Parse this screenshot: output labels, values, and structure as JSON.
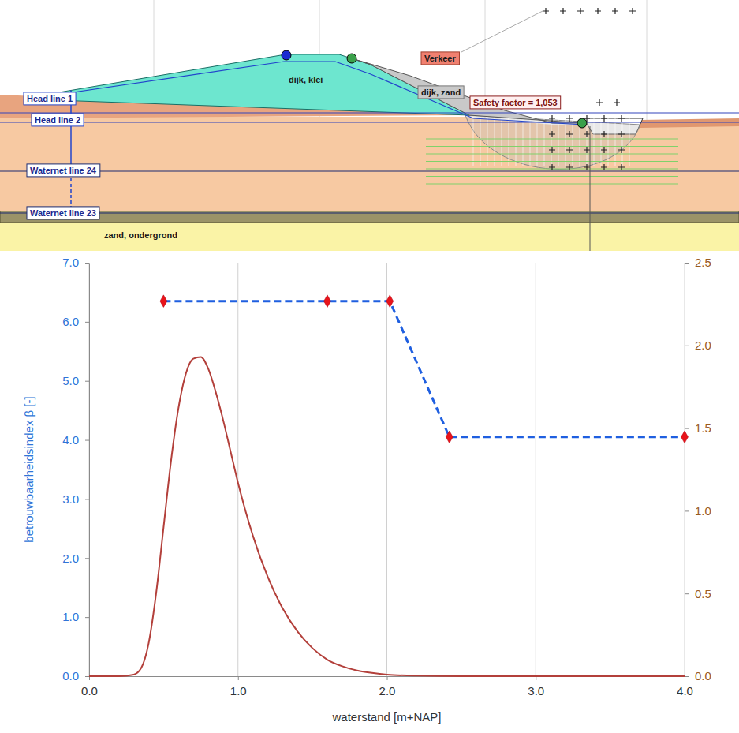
{
  "chart_data": {
    "type": "line",
    "xlabel": "waterstand [m+NAP]",
    "ylabel": "betrouwbaarheidsindex β [-]",
    "xlim": [
      0,
      4
    ],
    "xticks": [
      {
        "value": 0,
        "label": "0.0"
      },
      {
        "value": 1,
        "label": "1.0"
      },
      {
        "value": 2,
        "label": "2.0"
      },
      {
        "value": 3,
        "label": "3.0"
      },
      {
        "value": 4,
        "label": "4.0"
      }
    ],
    "ylim": [
      0,
      7
    ],
    "yticks": [
      {
        "value": 0,
        "label": "0.0"
      },
      {
        "value": 1,
        "label": "1.0"
      },
      {
        "value": 2,
        "label": "2.0"
      },
      {
        "value": 3,
        "label": "3.0"
      },
      {
        "value": 4,
        "label": "4.0"
      },
      {
        "value": 5,
        "label": "5.0"
      },
      {
        "value": 6,
        "label": "6.0"
      },
      {
        "value": 7,
        "label": "7.0"
      }
    ],
    "y2lim": [
      0,
      2.5
    ],
    "y2ticks": [
      {
        "value": 0,
        "label": "0.0"
      },
      {
        "value": 0.5,
        "label": "0.5"
      },
      {
        "value": 1,
        "label": "1.0"
      },
      {
        "value": 1.5,
        "label": "1.5"
      },
      {
        "value": 2,
        "label": "2.0"
      },
      {
        "value": 2.5,
        "label": "2.5"
      }
    ],
    "grid": "x",
    "series": [
      {
        "type": "line",
        "color": "#1f5fe0",
        "line_style": "dashed",
        "marker": "diamond",
        "x": [
          0.5,
          1.6,
          2.02,
          2.42,
          4.0
        ],
        "values": [
          6.35,
          6.35,
          6.35,
          4.05,
          4.05
        ]
      },
      {
        "type": "line",
        "axis": "y2",
        "color": "#b3403b",
        "line_style": "solid",
        "x": [
          0,
          0.2,
          0.3,
          0.35,
          0.4,
          0.45,
          0.5,
          0.55,
          0.6,
          0.65,
          0.7,
          0.75,
          0.8,
          0.85,
          0.9,
          0.95,
          1.0,
          1.1,
          1.2,
          1.3,
          1.4,
          1.5,
          1.6,
          1.7,
          1.8,
          1.9,
          2.0,
          2.2,
          2.5,
          3.0,
          3.5,
          4.0
        ],
        "values": [
          0,
          0,
          0.01,
          0.05,
          0.2,
          0.5,
          0.9,
          1.3,
          1.62,
          1.83,
          1.92,
          1.93,
          1.86,
          1.72,
          1.55,
          1.36,
          1.17,
          0.85,
          0.6,
          0.41,
          0.27,
          0.17,
          0.1,
          0.06,
          0.035,
          0.02,
          0.01,
          0.003,
          0,
          0,
          0,
          0
        ]
      }
    ]
  },
  "cross_section": {
    "labels": {
      "clay": "dijk, klei",
      "sand": "dijk, zand",
      "traffic": "Verkeer",
      "safety": "Safety factor = 1,053",
      "head1": "Head line 1",
      "head2": "Head line 2",
      "waternet24": "Waternet line 24",
      "waternet23": "Waternet line 23",
      "subsoil": "zand, ondergrond"
    }
  }
}
